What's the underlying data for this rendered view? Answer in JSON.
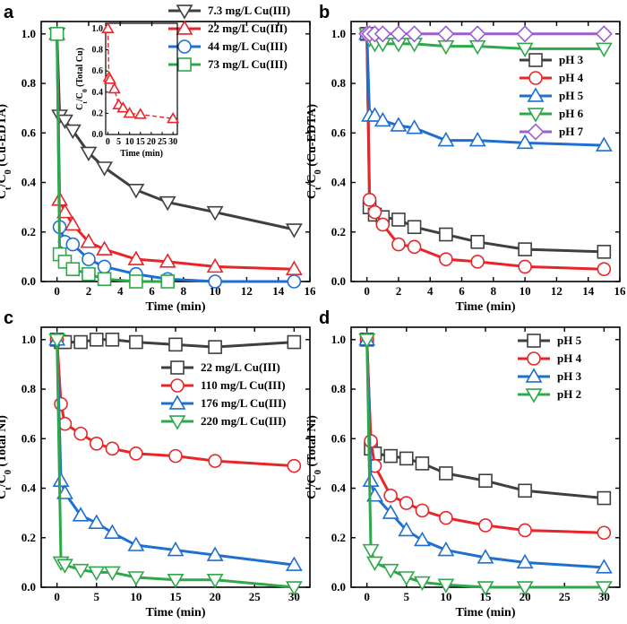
{
  "chart_data": [
    {
      "panel": "a",
      "type": "line",
      "xlabel": "Time (min)",
      "ylabel": "Ct/C0 (Cu-EDTA)",
      "xlim": [
        -1,
        16
      ],
      "ylim": [
        0,
        1.05
      ],
      "xticks": [
        0,
        2,
        4,
        6,
        8,
        10,
        12,
        14,
        16
      ],
      "yticks": [
        0.0,
        0.2,
        0.4,
        0.6,
        0.8,
        1.0
      ],
      "legend": "top-right",
      "series": [
        {
          "name": "7.3 mg/L Cu(III)",
          "color": "#3f3f3f",
          "marker": "triangle-down",
          "x": [
            0,
            0.167,
            0.5,
            1,
            2,
            3,
            5,
            7,
            10,
            15
          ],
          "y": [
            1.0,
            0.67,
            0.65,
            0.61,
            0.52,
            0.46,
            0.37,
            0.32,
            0.28,
            0.21
          ]
        },
        {
          "name": "22 mg/L Cu(III)",
          "color": "#e8262a",
          "marker": "triangle-up",
          "x": [
            0,
            0.167,
            0.5,
            1,
            2,
            3,
            5,
            7,
            10,
            15
          ],
          "y": [
            1.0,
            0.33,
            0.28,
            0.23,
            0.16,
            0.13,
            0.09,
            0.08,
            0.06,
            0.05
          ]
        },
        {
          "name": "44 mg/L Cu(III)",
          "color": "#1f6fd1",
          "marker": "circle",
          "x": [
            0,
            0.167,
            0.5,
            1,
            2,
            3,
            5,
            7,
            10,
            15
          ],
          "y": [
            1.0,
            0.22,
            0.16,
            0.15,
            0.09,
            0.06,
            0.03,
            0.01,
            0.0,
            0.0
          ]
        },
        {
          "name": "73 mg/L Cu(III)",
          "color": "#2ea84a",
          "marker": "square",
          "x": [
            0,
            0.167,
            0.5,
            1,
            2,
            3,
            5,
            7
          ],
          "y": [
            1.0,
            0.11,
            0.08,
            0.05,
            0.03,
            0.01,
            0.0,
            0.0
          ]
        }
      ],
      "inset": {
        "ylabel": "Ct/C0 (Total Cu)",
        "xlabel": "Time (min)",
        "xlim": [
          -1,
          32
        ],
        "ylim": [
          0,
          1.05
        ],
        "xticks": [
          0,
          5,
          10,
          15,
          20,
          25,
          30
        ],
        "yticks": [
          0.0,
          0.2,
          0.4,
          0.6,
          0.8,
          1.0
        ],
        "series": [
          {
            "name": "",
            "color": "#e8262a",
            "marker": "triangle-up",
            "x": [
              0,
              0.5,
              1,
              3,
              5,
              7,
              10,
              15,
              30
            ],
            "y": [
              1.0,
              0.54,
              0.52,
              0.43,
              0.28,
              0.25,
              0.2,
              0.19,
              0.15
            ]
          }
        ]
      }
    },
    {
      "panel": "b",
      "type": "line",
      "xlabel": "Time (min)",
      "ylabel": "Ct/C0 (Cu-EDTA)",
      "xlim": [
        -1,
        16
      ],
      "ylim": [
        0,
        1.05
      ],
      "xticks": [
        0,
        2,
        4,
        6,
        8,
        10,
        12,
        14,
        16
      ],
      "yticks": [
        0.0,
        0.2,
        0.4,
        0.6,
        0.8,
        1.0
      ],
      "legend": "right",
      "series": [
        {
          "name": "pH 3",
          "color": "#3f3f3f",
          "marker": "square",
          "x": [
            0,
            0.167,
            0.5,
            1,
            2,
            3,
            5,
            7,
            10,
            15
          ],
          "y": [
            1.0,
            0.3,
            0.27,
            0.26,
            0.25,
            0.22,
            0.19,
            0.16,
            0.13,
            0.12
          ]
        },
        {
          "name": "pH 4",
          "color": "#e8262a",
          "marker": "circle",
          "x": [
            0,
            0.167,
            0.5,
            1,
            2,
            3,
            5,
            7,
            10,
            15
          ],
          "y": [
            1.0,
            0.33,
            0.28,
            0.23,
            0.15,
            0.14,
            0.09,
            0.08,
            0.06,
            0.05
          ]
        },
        {
          "name": "pH 5",
          "color": "#1f6fd1",
          "marker": "triangle-up",
          "x": [
            0,
            0.167,
            0.5,
            1,
            2,
            3,
            5,
            7,
            10,
            15
          ],
          "y": [
            1.0,
            0.67,
            0.67,
            0.65,
            0.63,
            0.62,
            0.57,
            0.57,
            0.56,
            0.55
          ]
        },
        {
          "name": "pH 6",
          "color": "#2ea84a",
          "marker": "triangle-down",
          "x": [
            0,
            0.167,
            0.5,
            1,
            2,
            3,
            5,
            7,
            10,
            15
          ],
          "y": [
            1.0,
            0.98,
            0.96,
            0.96,
            0.96,
            0.96,
            0.95,
            0.95,
            0.94,
            0.94
          ]
        },
        {
          "name": "pH 7",
          "color": "#9c5fd0",
          "marker": "diamond",
          "x": [
            0,
            0.167,
            0.5,
            1,
            2,
            3,
            5,
            7,
            10,
            15
          ],
          "y": [
            1.0,
            1.0,
            1.0,
            1.0,
            1.0,
            1.0,
            1.0,
            1.0,
            1.0,
            1.0
          ]
        }
      ]
    },
    {
      "panel": "c",
      "type": "line",
      "xlabel": "Time (min)",
      "ylabel": "Ct/C0 (Total Ni)",
      "xlim": [
        -2,
        32
      ],
      "ylim": [
        0,
        1.05
      ],
      "xticks": [
        0,
        5,
        10,
        15,
        20,
        25,
        30
      ],
      "yticks": [
        0.0,
        0.2,
        0.4,
        0.6,
        0.8,
        1.0
      ],
      "legend": "right",
      "series": [
        {
          "name": "22 mg/L Cu(III)",
          "color": "#3f3f3f",
          "marker": "square",
          "x": [
            0,
            0.5,
            1,
            3,
            5,
            7,
            10,
            15,
            20,
            30
          ],
          "y": [
            1.0,
            0.99,
            0.99,
            0.99,
            1.0,
            1.0,
            0.99,
            0.98,
            0.97,
            0.99
          ]
        },
        {
          "name": "110 mg/L Cu(III)",
          "color": "#e8262a",
          "marker": "circle",
          "x": [
            0,
            0.5,
            1,
            3,
            5,
            7,
            10,
            15,
            20,
            30
          ],
          "y": [
            1.0,
            0.74,
            0.66,
            0.62,
            0.58,
            0.56,
            0.54,
            0.53,
            0.51,
            0.49
          ]
        },
        {
          "name": "176 mg/L Cu(III)",
          "color": "#1f6fd1",
          "marker": "triangle-up",
          "x": [
            0,
            0.5,
            1,
            3,
            5,
            7,
            10,
            15,
            20,
            30
          ],
          "y": [
            1.0,
            0.43,
            0.38,
            0.29,
            0.26,
            0.22,
            0.17,
            0.15,
            0.13,
            0.09
          ]
        },
        {
          "name": "220 mg/L Cu(III)",
          "color": "#2ea84a",
          "marker": "triangle-down",
          "x": [
            0,
            0.5,
            1,
            3,
            5,
            7,
            10,
            15,
            20,
            30
          ],
          "y": [
            1.0,
            0.1,
            0.09,
            0.07,
            0.06,
            0.06,
            0.04,
            0.03,
            0.03,
            0.0
          ]
        }
      ]
    },
    {
      "panel": "d",
      "type": "line",
      "xlabel": "Time (min)",
      "ylabel": "Ct/C0 (Total Ni)",
      "xlim": [
        -2,
        32
      ],
      "ylim": [
        0,
        1.05
      ],
      "xticks": [
        0,
        5,
        10,
        15,
        20,
        25,
        30
      ],
      "yticks": [
        0.0,
        0.2,
        0.4,
        0.6,
        0.8,
        1.0
      ],
      "legend": "top-right",
      "series": [
        {
          "name": "pH 5",
          "color": "#3f3f3f",
          "marker": "square",
          "x": [
            0,
            0.5,
            1,
            3,
            5,
            7,
            10,
            15,
            20,
            30
          ],
          "y": [
            1.0,
            0.56,
            0.54,
            0.53,
            0.52,
            0.5,
            0.46,
            0.43,
            0.39,
            0.36
          ]
        },
        {
          "name": "pH 4",
          "color": "#e8262a",
          "marker": "circle",
          "x": [
            0,
            0.5,
            1,
            3,
            5,
            7,
            10,
            15,
            20,
            30
          ],
          "y": [
            1.0,
            0.59,
            0.49,
            0.37,
            0.34,
            0.31,
            0.28,
            0.25,
            0.23,
            0.22
          ]
        },
        {
          "name": "pH 3",
          "color": "#1f6fd1",
          "marker": "triangle-up",
          "x": [
            0,
            0.5,
            1,
            3,
            5,
            7,
            10,
            15,
            20,
            30
          ],
          "y": [
            1.0,
            0.43,
            0.37,
            0.3,
            0.23,
            0.19,
            0.15,
            0.12,
            0.1,
            0.08
          ]
        },
        {
          "name": "pH 2",
          "color": "#2ea84a",
          "marker": "triangle-down",
          "x": [
            0,
            0.5,
            1,
            3,
            5,
            7,
            10,
            15,
            20,
            30
          ],
          "y": [
            1.0,
            0.15,
            0.1,
            0.07,
            0.04,
            0.02,
            0.01,
            0.0,
            0.0,
            0.0
          ]
        }
      ]
    }
  ]
}
